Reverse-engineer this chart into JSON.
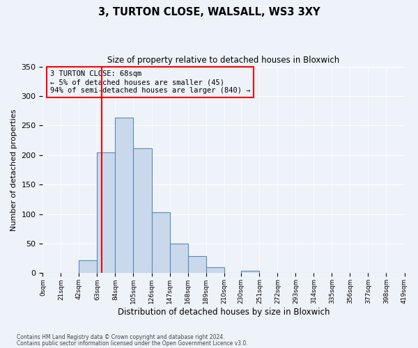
{
  "title": "3, TURTON CLOSE, WALSALL, WS3 3XY",
  "subtitle": "Size of property relative to detached houses in Bloxwich",
  "xlabel": "Distribution of detached houses by size in Bloxwich",
  "ylabel": "Number of detached properties",
  "bin_edges": [
    0,
    21,
    42,
    63,
    84,
    105,
    126,
    147,
    168,
    189,
    210,
    230,
    251,
    272,
    293,
    314,
    335,
    356,
    377,
    398,
    419
  ],
  "bar_heights": [
    0,
    0,
    22,
    205,
    263,
    211,
    103,
    50,
    29,
    10,
    0,
    4,
    0,
    0,
    0,
    0,
    1,
    0,
    0,
    1
  ],
  "bar_color": "#c9d9eb",
  "bar_edge_color": "#5b8ab5",
  "vline_x": 68,
  "vline_color": "red",
  "ylim": [
    0,
    350
  ],
  "yticks": [
    0,
    50,
    100,
    150,
    200,
    250,
    300,
    350
  ],
  "xtick_labels": [
    "0sqm",
    "21sqm",
    "42sqm",
    "63sqm",
    "84sqm",
    "105sqm",
    "126sqm",
    "147sqm",
    "168sqm",
    "189sqm",
    "210sqm",
    "230sqm",
    "251sqm",
    "272sqm",
    "293sqm",
    "314sqm",
    "335sqm",
    "356sqm",
    "377sqm",
    "398sqm",
    "419sqm"
  ],
  "annotation_lines": [
    "3 TURTON CLOSE: 68sqm",
    "← 5% of detached houses are smaller (45)",
    "94% of semi-detached houses are larger (840) →"
  ],
  "annotation_box_color": "red",
  "footnote1": "Contains HM Land Registry data © Crown copyright and database right 2024.",
  "footnote2": "Contains public sector information licensed under the Open Government Licence v3.0.",
  "bg_color": "#eef2f9"
}
